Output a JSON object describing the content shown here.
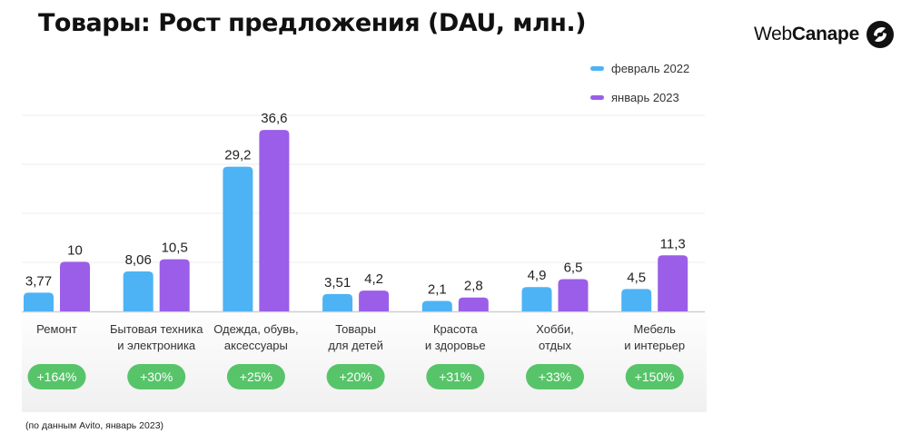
{
  "title": "Товары: Рост предложения (DAU, млн.)",
  "brand": {
    "text_regular": "Web",
    "text_bold": "Canape",
    "icon": "webcanape-logo-icon"
  },
  "footnote": "(по данным Avito, январь 2023)",
  "colors": {
    "feb2022": "#4db3f5",
    "jan2023": "#9b5ee8",
    "growth_badge": "#58c46a",
    "axis": "#d0d0d0"
  },
  "chart_data": {
    "type": "bar",
    "title": "Товары: Рост предложения (DAU, млн.)",
    "categories": [
      [
        "Ремонт"
      ],
      [
        "Бытовая техника",
        "и электроника"
      ],
      [
        "Одежда, обувь,",
        "аксессуары"
      ],
      [
        "Товары",
        "для детей"
      ],
      [
        "Красота",
        "и здоровье"
      ],
      [
        "Хобби,",
        "отдых"
      ],
      [
        "Мебель",
        "и интерьер"
      ]
    ],
    "series": [
      {
        "name": "февраль 2022",
        "values": [
          3.77,
          8.06,
          29.2,
          3.51,
          2.1,
          4.9,
          4.5
        ],
        "labels": [
          "3,77",
          "8,06",
          "29,2",
          "3,51",
          "2,1",
          "4,9",
          "4,5"
        ]
      },
      {
        "name": "январь 2023",
        "values": [
          10,
          10.5,
          36.6,
          4.2,
          2.8,
          6.5,
          11.3
        ],
        "labels": [
          "10",
          "10,5",
          "36,6",
          "4,2",
          "2,8",
          "6,5",
          "11,3"
        ]
      }
    ],
    "growth": [
      "+164%",
      "+30%",
      "+25%",
      "+20%",
      "+31%",
      "+33%",
      "+150%"
    ],
    "legend_position": "top-right",
    "grid": true
  }
}
